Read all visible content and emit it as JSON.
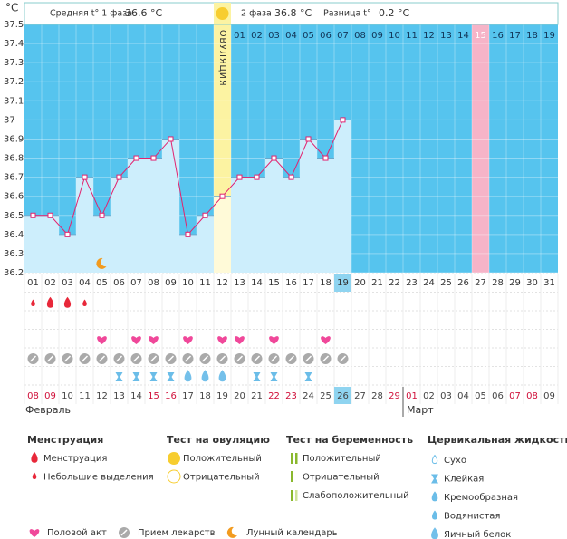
{
  "chart_data": {
    "type": "line",
    "y_axis_label": "°C",
    "header": {
      "phase1_label": "Средняя t° 1 фаза",
      "phase1_value": "36.6 °C",
      "phase2_label": "2 фаза",
      "phase2_value": "36.8 °C",
      "diff_label": "Разница t°",
      "diff_value": "0.2 °C"
    },
    "ovulation_label": "ОВУЛЯЦИЯ",
    "ovulation_day": 12,
    "marked_day": 27,
    "today_day": 19,
    "moon_day": 5,
    "categories": [
      "01",
      "02",
      "03",
      "04",
      "05",
      "06",
      "07",
      "08",
      "09",
      "10",
      "11",
      "12",
      "13",
      "14",
      "15",
      "16",
      "17",
      "18",
      "19",
      "20",
      "21",
      "22",
      "23",
      "24",
      "25",
      "26",
      "27",
      "28",
      "29",
      "30",
      "31"
    ],
    "values": [
      36.5,
      36.5,
      36.4,
      36.7,
      36.5,
      36.7,
      36.8,
      36.8,
      36.9,
      36.4,
      36.5,
      36.6,
      36.7,
      36.7,
      36.8,
      36.7,
      36.9,
      36.8,
      37.0,
      null,
      null,
      null,
      null,
      null,
      null,
      null,
      null,
      null,
      null,
      null,
      null
    ],
    "color": "#e2226e",
    "ylim": [
      36.2,
      37.5
    ],
    "yticks": [
      36.2,
      36.3,
      36.4,
      36.5,
      36.6,
      36.7,
      36.8,
      36.9,
      37,
      37.1,
      37.2,
      37.3,
      37.4,
      37.5
    ],
    "phase2_days": [
      "01",
      "02",
      "03",
      "04",
      "05",
      "06",
      "07",
      "08",
      "09",
      "10",
      "11",
      "12",
      "13",
      "14",
      "15",
      "16",
      "17",
      "18",
      "19"
    ],
    "menstruation": {
      "days": [
        1,
        2,
        3,
        4
      ],
      "kinds": [
        1,
        0,
        0,
        1
      ]
    },
    "intercourse_days": [
      5,
      7,
      8,
      10,
      12,
      13,
      15,
      18
    ],
    "medication_days": [
      1,
      2,
      3,
      4,
      5,
      6,
      7,
      8,
      9,
      10,
      11,
      12,
      13,
      14,
      15,
      16,
      17,
      18,
      19
    ],
    "cervical": {
      "days": [
        6,
        7,
        8,
        9,
        10,
        11,
        12,
        14,
        15,
        17
      ],
      "kinds": [
        1,
        1,
        1,
        1,
        4,
        4,
        4,
        1,
        1,
        1
      ]
    },
    "dates": [
      "08",
      "09",
      "10",
      "11",
      "12",
      "13",
      "14",
      "15",
      "16",
      "17",
      "18",
      "19",
      "20",
      "21",
      "22",
      "23",
      "24",
      "25",
      "26",
      "27",
      "28",
      "29",
      "01",
      "02",
      "03",
      "04",
      "05",
      "06",
      "07",
      "08",
      "09"
    ],
    "weekend_dates": [
      0,
      1,
      7,
      8,
      14,
      15,
      21,
      22,
      28,
      29
    ],
    "months": [
      {
        "label": "Февраль",
        "start": 1
      },
      {
        "label": "Март",
        "start": 23
      }
    ],
    "legend": {
      "menstruation": {
        "title": "Менструация",
        "items": [
          "Менструация",
          "Небольшие выделения"
        ]
      },
      "ovulation_test": {
        "title": "Тест на овуляцию",
        "items": [
          "Положительный",
          "Отрицательный"
        ]
      },
      "pregnancy_test": {
        "title": "Тест на беременность",
        "items": [
          "Положительный",
          "Отрицательный",
          "Слабоположительный"
        ]
      },
      "cervical": {
        "title": "Цервикальная жидкость",
        "items": [
          "Сухо",
          "Клейкая",
          "Кремообразная",
          "Водянистая",
          "Яичный белок"
        ]
      },
      "other": [
        "Половой акт",
        "Прием лекарств",
        "Лунный календарь"
      ]
    }
  }
}
